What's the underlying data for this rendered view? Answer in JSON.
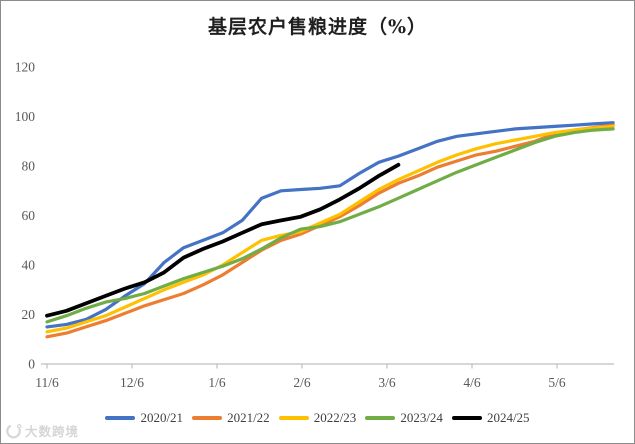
{
  "chart": {
    "title_color": "#1f1f1f",
    "axis_color": "#BFBFBF",
    "tick_label_color": "#595959"
  },
  "watermark": {
    "text": "大数跨境"
  },
  "chart_data": {
    "type": "line",
    "title": "基层农户售粮进度（%）",
    "xlabel": "",
    "ylabel": "",
    "x_tick_labels": [
      "11/6",
      "12/6",
      "1/6",
      "2/6",
      "3/6",
      "4/6",
      "5/6"
    ],
    "x_unit": "weekly points starting 11/6",
    "y_axis": {
      "ticks": [
        0,
        20,
        40,
        60,
        80,
        100,
        120
      ],
      "ylim": [
        0,
        120
      ]
    },
    "grid": false,
    "legend_position": "bottom",
    "series": [
      {
        "name": "2020/21",
        "color": "#4472C4",
        "values": [
          15,
          16,
          18,
          22,
          27.5,
          32.5,
          41,
          47,
          50,
          53,
          58,
          67,
          70,
          70.5,
          71,
          72,
          77,
          81.5,
          84,
          87,
          90,
          92,
          93,
          94,
          95,
          95.5,
          96,
          96.5,
          97,
          97.5
        ]
      },
      {
        "name": "2021/22",
        "color": "#ED7D31",
        "values": [
          11,
          12.5,
          15,
          17.5,
          20.5,
          23.5,
          26,
          28.5,
          32,
          36,
          41,
          46,
          50,
          52.5,
          56,
          59.5,
          64,
          69,
          73,
          76,
          79.5,
          82,
          84.5,
          86,
          88,
          90,
          93,
          94.5,
          95.5,
          96.5
        ]
      },
      {
        "name": "2022/23",
        "color": "#FFC000",
        "values": [
          13,
          14.5,
          17,
          19.5,
          23,
          26.5,
          30,
          33,
          36,
          40,
          45,
          50,
          52,
          53.5,
          57,
          60.5,
          65.5,
          70.5,
          74.5,
          78,
          81.5,
          84.5,
          87,
          89,
          90.5,
          92,
          93.5,
          94.5,
          95.3,
          96
        ]
      },
      {
        "name": "2023/24",
        "color": "#70AD47",
        "values": [
          17,
          19.5,
          22.5,
          25,
          26.5,
          28.5,
          31.5,
          34.5,
          37,
          39.5,
          42.5,
          46.5,
          51,
          54.5,
          55.5,
          57.5,
          60.5,
          63.5,
          67,
          70.5,
          74,
          77.5,
          80.5,
          83.5,
          86.5,
          89.5,
          92,
          93.5,
          94.5,
          95
        ]
      },
      {
        "name": "2024/25",
        "color": "#000000",
        "values": [
          19.5,
          21.5,
          24.5,
          27.5,
          30.5,
          33,
          37,
          43,
          46.5,
          49.5,
          53,
          56.5,
          58,
          59.5,
          62.5,
          66.5,
          71,
          76,
          80.5
        ]
      }
    ]
  }
}
